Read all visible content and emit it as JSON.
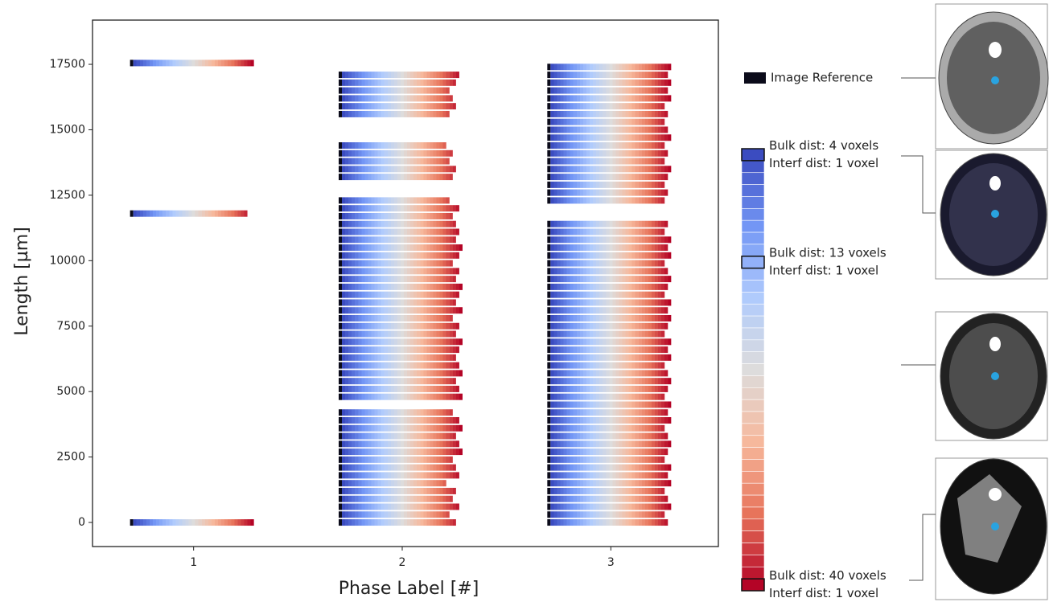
{
  "chart_data": {
    "type": "phase-strips",
    "xlabel": "Phase Label [#]",
    "ylabel": "Length [µm]",
    "categories": [
      "1",
      "2",
      "3"
    ],
    "ylim": [
      -920,
      19190
    ],
    "yticks": [
      0,
      2500,
      5000,
      7500,
      10000,
      12500,
      15000,
      17500
    ],
    "colormap": [
      "#3b4cc0",
      "#7396f5",
      "#b0cbfc",
      "#dddcdc",
      "#f6b89c",
      "#e7745b",
      "#b40426"
    ],
    "reference": {
      "label": "Image Reference",
      "color": "#0b0b1a"
    },
    "colorbar": {
      "range": [
        4,
        40
      ],
      "markers": [
        {
          "value": 4,
          "bulk": "Bulk dist: 4 voxels",
          "interf": "Interf dist: 1 voxel"
        },
        {
          "value": 13,
          "bulk": "Bulk dist: 13 voxels",
          "interf": "Interf dist: 1 voxel"
        },
        {
          "value": 40,
          "bulk": "Bulk dist: 40 voxels",
          "interf": "Interf dist: 1 voxel"
        }
      ]
    },
    "phases": [
      {
        "lengths": [
          0,
          11800,
          17550
        ],
        "steps": [
          40,
          38,
          40
        ]
      },
      {
        "lengths": [
          0,
          300,
          600,
          900,
          1200,
          1500,
          1800,
          2100,
          2400,
          2700,
          3000,
          3300,
          3600,
          3900,
          4200,
          4800,
          5100,
          5400,
          5700,
          6000,
          6300,
          6600,
          6900,
          7200,
          7500,
          7800,
          8100,
          8400,
          8700,
          9000,
          9300,
          9600,
          9900,
          10200,
          10500,
          10800,
          11100,
          11400,
          11700,
          12000,
          12300,
          13200,
          13500,
          13800,
          14100,
          14400,
          15600,
          15900,
          16200,
          16500,
          16800,
          17100
        ],
        "steps": [
          38,
          36,
          39,
          37,
          38,
          35,
          39,
          38,
          37,
          40,
          39,
          38,
          40,
          39,
          37,
          40,
          39,
          38,
          40,
          39,
          38,
          39,
          40,
          38,
          39,
          37,
          40,
          38,
          39,
          40,
          38,
          39,
          37,
          39,
          40,
          38,
          39,
          38,
          37,
          39,
          36,
          37,
          38,
          36,
          37,
          35,
          36,
          38,
          37,
          36,
          38,
          39
        ]
      },
      {
        "lengths": [
          0,
          300,
          600,
          900,
          1200,
          1500,
          1800,
          2100,
          2400,
          2700,
          3000,
          3300,
          3600,
          3900,
          4200,
          4500,
          4800,
          5100,
          5400,
          5700,
          6000,
          6300,
          6600,
          6900,
          7200,
          7500,
          7800,
          8100,
          8400,
          8700,
          9000,
          9300,
          9600,
          9900,
          10200,
          10500,
          10800,
          11100,
          11400,
          12300,
          12600,
          12900,
          13200,
          13500,
          13800,
          14100,
          14400,
          14700,
          15000,
          15300,
          15600,
          15900,
          16200,
          16500,
          16800,
          17100,
          17400
        ],
        "steps": [
          39,
          38,
          40,
          39,
          38,
          40,
          39,
          40,
          38,
          39,
          40,
          39,
          38,
          40,
          39,
          40,
          38,
          39,
          40,
          39,
          38,
          40,
          39,
          40,
          38,
          39,
          40,
          39,
          40,
          38,
          39,
          40,
          39,
          38,
          40,
          39,
          40,
          38,
          39,
          38,
          39,
          38,
          39,
          40,
          38,
          39,
          38,
          40,
          39,
          38,
          39,
          38,
          40,
          39,
          40,
          39,
          40
        ]
      }
    ]
  }
}
